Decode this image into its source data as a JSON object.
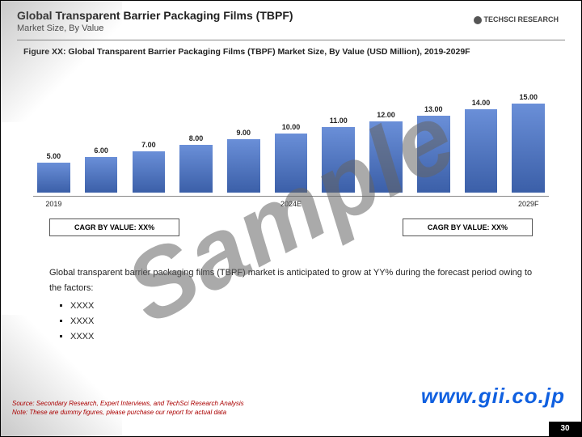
{
  "header": {
    "title": "Global Transparent Barrier Packaging Films (TBPF)",
    "subtitle": "Market Size, By Value",
    "logo_text": "TECHSCI RESEARCH"
  },
  "figure": {
    "title": "Figure XX: Global Transparent Barrier Packaging Films (TBPF) Market Size, By Value (USD Million), 2019-2029F",
    "chart": {
      "type": "bar",
      "categories": [
        "2019",
        "",
        "",
        "",
        "",
        "2024E",
        "",
        "",
        "",
        "",
        "2029F"
      ],
      "value_labels": [
        "5.00",
        "6.00",
        "7.00",
        "8.00",
        "9.00",
        "10.00",
        "11.00",
        "12.00",
        "13.00",
        "14.00",
        "15.00"
      ],
      "values": [
        5,
        6,
        7,
        8,
        9,
        10,
        11,
        12,
        13,
        14,
        15
      ],
      "ymax": 15,
      "bar_color": "#3b5fa8",
      "bar_color_top": "#6a8fd8",
      "label_fontsize": 9,
      "xlabel_fontsize": 9
    },
    "cagr_left": "CAGR BY VALUE: XX%",
    "cagr_right": "CAGR BY VALUE: XX%"
  },
  "body": {
    "intro": "Global transparent barrier packaging films (TBPF) market is anticipated to grow at YY% during the forecast period owing to the factors:",
    "bullets": [
      "XXXX",
      "XXXX",
      "XXXX"
    ]
  },
  "footer": {
    "source_line1": "Source: Secondary Research, Expert Interviews, and TechSci Research Analysis",
    "source_line2": "Note: These are dummy figures, please purchase our report for actual data",
    "url": "www.gii.co.jp",
    "page_number": "30"
  },
  "watermark": "Sample"
}
